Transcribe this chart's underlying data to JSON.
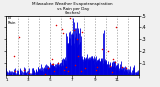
{
  "title": "Milwaukee Weather Evapotranspiration vs Rain per Day (Inches)",
  "bg_color": "#f0f0f0",
  "plot_bg": "#ffffff",
  "grid_color": "#999999",
  "et_color": "#0000dd",
  "rain_color": "#dd0000",
  "n_days": 365,
  "ylim": [
    0,
    0.5
  ],
  "ytick_vals": [
    0.1,
    0.2,
    0.3,
    0.4,
    0.5
  ],
  "ytick_labels": [
    ".1",
    ".2",
    ".3",
    ".4",
    ".5"
  ],
  "month_starts": [
    0,
    31,
    59,
    90,
    120,
    151,
    181,
    212,
    243,
    273,
    304,
    334
  ],
  "month_tick_labels": [
    "1",
    "3",
    "5",
    "7",
    "9",
    "11",
    ""
  ],
  "month_tick_pos": [
    0,
    59,
    120,
    181,
    243,
    304,
    365
  ]
}
